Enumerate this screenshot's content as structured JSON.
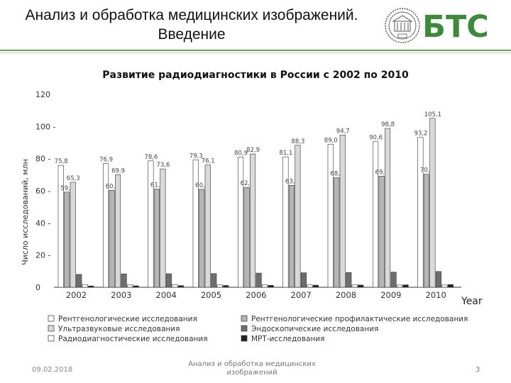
{
  "header": {
    "title_line1": "Анализ и обработка медицинских изображений.",
    "title_line2": "Введение",
    "logo_text": "БТС",
    "colors": {
      "brand": "#3c8a3a",
      "rule": "#6aa84f"
    }
  },
  "chart_data": {
    "type": "bar",
    "title": "Развитие радиодиагностики в России с 2002 по 2010",
    "ylabel": "Число исследований, млн",
    "xlabel": "Year",
    "ylim": [
      0,
      120
    ],
    "yticks": [
      "0",
      "20 -",
      "40 -",
      "60 -",
      "80 -",
      "100 -",
      "120"
    ],
    "categories": [
      "2002",
      "2003",
      "2004",
      "2005",
      "2006",
      "2007",
      "2008",
      "2009",
      "2010"
    ],
    "series": [
      {
        "name": "Рентгенологические исследования",
        "color": "#ffffff",
        "values": [
          75.8,
          76.9,
          78.6,
          79.3,
          80.9,
          81.1,
          89.0,
          90.6,
          93.2
        ],
        "labels": [
          "75,8",
          "76,9",
          "78,6",
          "79,3",
          "80,9",
          "81,1",
          "89,0",
          "90,6",
          "93,2"
        ]
      },
      {
        "name": "Рентгенологические профилактические исследования",
        "color": "#b5b5b5",
        "values": [
          59.2,
          60.3,
          61.1,
          60.9,
          62.1,
          63.4,
          68.1,
          69.1,
          70.3
        ],
        "labels": [
          "59,2",
          "60,3",
          "61,1",
          "60,9",
          "62,1",
          "63,4",
          "68,1",
          "69,1",
          "70,3"
        ]
      },
      {
        "name": "Ультразвуковые исследования",
        "color": "#d9d9d9",
        "values": [
          65.3,
          69.9,
          73.6,
          76.1,
          82.9,
          88.3,
          94.7,
          98.8,
          105.1
        ],
        "labels": [
          "65,3",
          "69,9",
          "73,6",
          "76,1",
          "82,9",
          "88,3",
          "94,7",
          "98,8",
          "105,1"
        ]
      },
      {
        "name": "Эндоскопические исследования",
        "color": "#6e6e6e",
        "values": [
          8.0,
          8.3,
          8.4,
          8.5,
          8.8,
          9.0,
          9.2,
          9.4,
          9.8
        ],
        "labels": []
      },
      {
        "name": "Радиодиагностические исследования",
        "color": "#ffffff",
        "values": [
          1.7,
          1.6,
          1.6,
          1.5,
          1.5,
          1.5,
          1.5,
          1.4,
          1.4
        ],
        "labels": []
      },
      {
        "name": "МРТ-исследования",
        "color": "#222222",
        "values": [
          0.8,
          0.9,
          1.0,
          1.1,
          1.2,
          1.3,
          1.4,
          1.5,
          1.7
        ],
        "labels": []
      }
    ],
    "legend_order": [
      0,
      1,
      2,
      3,
      4,
      5
    ],
    "legend_placement": "bottom",
    "grid": false
  },
  "footer": {
    "date": "09.02.2018",
    "center_line1": "Анализ и обработка медицинских",
    "center_line2": "изображений",
    "page": "3"
  }
}
